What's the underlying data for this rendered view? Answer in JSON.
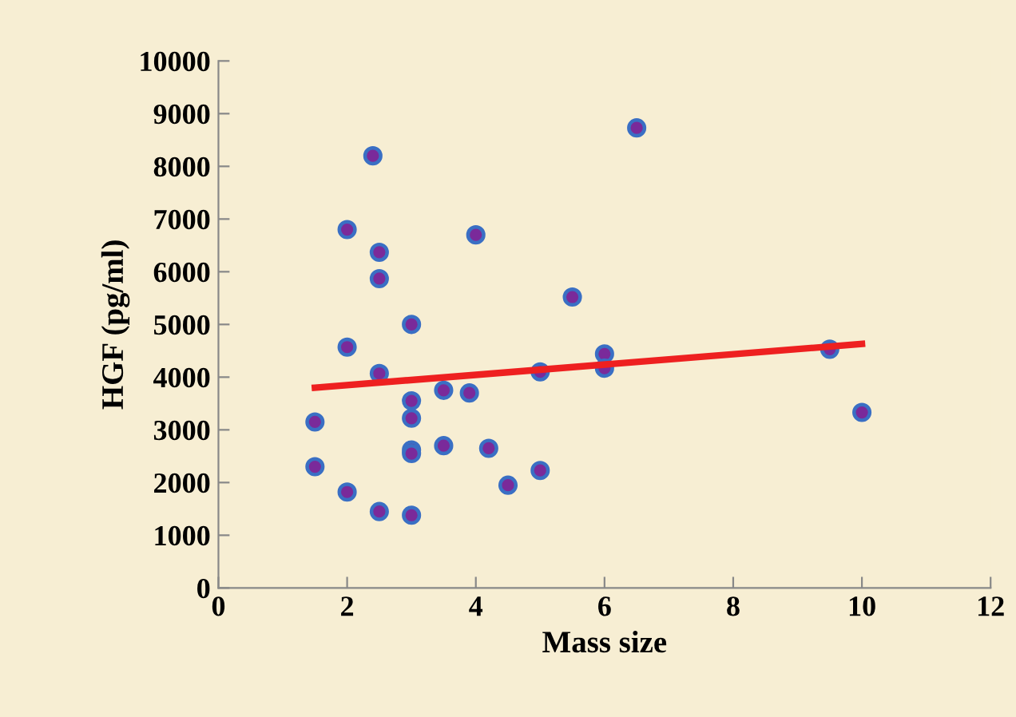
{
  "chart_data": {
    "type": "scatter",
    "xlabel": "Mass size",
    "ylabel": "HGF (pg/ml)",
    "xlim": [
      0,
      12
    ],
    "xticks": [
      0,
      2,
      4,
      6,
      8,
      10,
      12
    ],
    "ylim": [
      0,
      10000
    ],
    "yticks": [
      0,
      1000,
      2000,
      3000,
      4000,
      5000,
      6000,
      7000,
      8000,
      9000,
      10000
    ],
    "grid": false,
    "legend": false,
    "series": [
      {
        "marker": "circle",
        "color": "#7a2a9a",
        "x": [
          1.5,
          1.5,
          2,
          2,
          2,
          2.4,
          2.5,
          2.5,
          2.5,
          2.5,
          3,
          3,
          3,
          3,
          3,
          3,
          3.5,
          3.5,
          3.9,
          4,
          4.2,
          4.5,
          5,
          5,
          5.5,
          6,
          6,
          6.5,
          9.5,
          10
        ],
        "values": [
          3150,
          2300,
          6800,
          4570,
          1820,
          8200,
          6370,
          5870,
          4070,
          1450,
          5000,
          3550,
          3220,
          2620,
          2550,
          1380,
          3750,
          2700,
          3700,
          6700,
          2650,
          1950,
          4100,
          2230,
          5520,
          4440,
          4170,
          8730,
          4530,
          3330
        ]
      },
      {
        "type": "line",
        "color": "#ee2020",
        "x": [
          1.5,
          10
        ],
        "values": [
          3800,
          4630
        ],
        "line_style": "solid",
        "marker": "none"
      }
    ]
  }
}
